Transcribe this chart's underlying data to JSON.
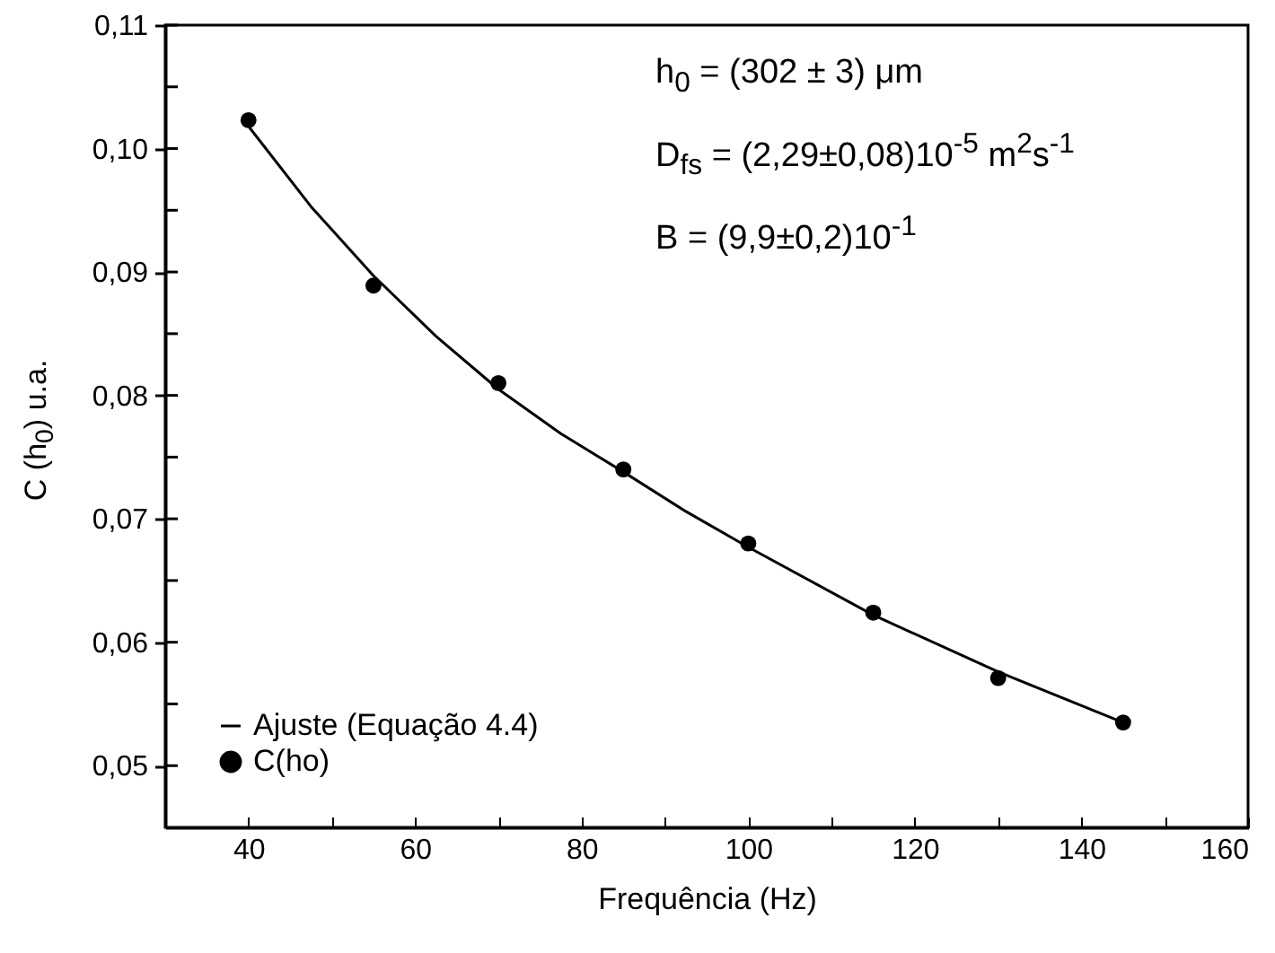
{
  "chart_data": {
    "type": "scatter",
    "xlabel": "Frequência (Hz)",
    "ylabel": "C (h$_{0}$) u.a.",
    "annotations": [
      "h$_{0}$ = (302 ± 3) μm",
      "D$_{fs}$ = (2,29±0,08)10$^{-5}$ m$^{2}$s$^{-1}$",
      "B = (9,9±0,2)10$^{-1}$"
    ],
    "xlim": [
      30,
      160
    ],
    "xticks": [
      40,
      {
        "value": 50,
        "label": null
      },
      60,
      {
        "value": 70,
        "label": null
      },
      80,
      {
        "value": 90,
        "label": null
      },
      100,
      {
        "value": 110,
        "label": null
      },
      120,
      {
        "value": 130,
        "label": null
      },
      140,
      {
        "value": 150,
        "label": null
      },
      160
    ],
    "ylim": [
      0.045,
      0.11
    ],
    "yticks": [
      {
        "value": 0.05,
        "label": "0,05"
      },
      {
        "value": 0.055,
        "label": null
      },
      {
        "value": 0.06,
        "label": "0,06"
      },
      {
        "value": 0.065,
        "label": null
      },
      {
        "value": 0.07,
        "label": "0,07"
      },
      {
        "value": 0.075,
        "label": null
      },
      {
        "value": 0.08,
        "label": "0,08"
      },
      {
        "value": 0.085,
        "label": null
      },
      {
        "value": 0.09,
        "label": "0,09"
      },
      {
        "value": 0.095,
        "label": null
      },
      {
        "value": 0.1,
        "label": "0,10"
      },
      {
        "value": 0.105,
        "label": null
      },
      {
        "value": 0.11,
        "label": "0,11"
      }
    ],
    "legend": "bottom left",
    "series": [
      {
        "name": "Ajuste (Equação 4.4)",
        "type": "line",
        "color": "#000000",
        "x": [
          40,
          47.5,
          55,
          62.5,
          70,
          77.5,
          85,
          92.5,
          100,
          115,
          130,
          145
        ],
        "values": [
          0.1018,
          0.0953,
          0.0897,
          0.0848,
          0.0805,
          0.0769,
          0.0738,
          0.0706,
          0.0677,
          0.0622,
          0.0576,
          0.0535
        ]
      },
      {
        "name": "C(ho)",
        "marker": "circle",
        "color": "#000000",
        "x": [
          40,
          55,
          70,
          85,
          100,
          115,
          130,
          145
        ],
        "values": [
          0.1023,
          0.0889,
          0.081,
          0.074,
          0.068,
          0.0624,
          0.0571,
          0.0535
        ]
      }
    ]
  }
}
